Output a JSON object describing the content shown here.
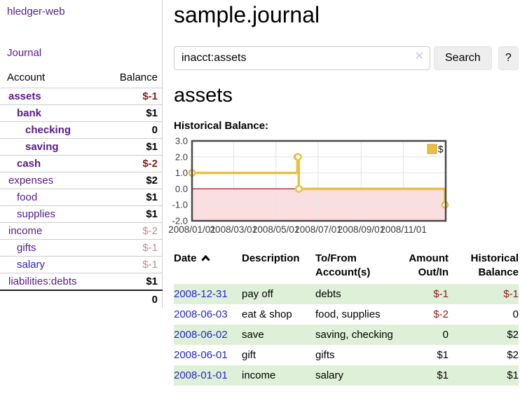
{
  "app": {
    "brand": "hledger-web",
    "nav_journal": "Journal"
  },
  "sidebar": {
    "accounts_header": {
      "account": "Account",
      "balance": "Balance"
    },
    "accounts": [
      {
        "name": "assets",
        "balance": "$-1",
        "indent": 1,
        "bold": true,
        "negative": "strong"
      },
      {
        "name": "bank",
        "balance": "$1",
        "indent": 2,
        "bold": true
      },
      {
        "name": "checking",
        "balance": "0",
        "indent": 3,
        "bold": true
      },
      {
        "name": "saving",
        "balance": "$1",
        "indent": 3,
        "bold": true
      },
      {
        "name": "cash",
        "balance": "$-2",
        "indent": 2,
        "bold": true,
        "negative": "strong"
      },
      {
        "name": "expenses",
        "balance": "$2",
        "indent": 1
      },
      {
        "name": "food",
        "balance": "$1",
        "indent": 2
      },
      {
        "name": "supplies",
        "balance": "$1",
        "indent": 2
      },
      {
        "name": "income",
        "balance": "$-2",
        "indent": 1,
        "negative": "muted"
      },
      {
        "name": "gifts",
        "balance": "$-1",
        "indent": 2,
        "negative": "muted"
      },
      {
        "name": "salary",
        "balance": "$-1",
        "indent": 2,
        "negative": "muted",
        "link_color": "blue"
      },
      {
        "name": "liabilities:debts",
        "balance": "$1",
        "indent": 1
      }
    ],
    "total": "0"
  },
  "header": {
    "title": "sample.journal"
  },
  "search": {
    "value": "inacct:assets",
    "clear_icon": "✕",
    "button_label": "Search",
    "help_label": "?"
  },
  "account_page": {
    "heading": "assets",
    "chart_title": "Historical Balance:"
  },
  "chart_data": {
    "type": "line",
    "step": true,
    "title": "Historical Balance:",
    "series": [
      {
        "name": "$",
        "color": "#e9c044",
        "x": [
          "2008/01/01",
          "2008/06/01",
          "2008/06/02",
          "2008/06/03",
          "2008/12/31"
        ],
        "values": [
          1,
          2,
          2,
          0,
          -1
        ]
      }
    ],
    "x_range": [
      "2008/01/01",
      "2009/01/01"
    ],
    "x_ticks": [
      "2008/01/01",
      "2008/03/01",
      "2008/05/01",
      "2008/07/01",
      "2008/09/01",
      "2008/11/01"
    ],
    "y_ticks": [
      "3.0",
      "2.0",
      "1.0",
      "0.0",
      "-1.0",
      "-2.0"
    ],
    "ylim": [
      -2,
      3
    ],
    "grid": true,
    "legend_position": "top-right",
    "negative_region_color": "#fbdfe0",
    "zero_line_color": "#9e1a1a",
    "frame_color": "#4a4a4a",
    "grid_color": "#e4e4e4"
  },
  "register": {
    "columns": [
      {
        "label": "Date",
        "sorted_asc": true
      },
      {
        "label": "Description"
      },
      {
        "label": "To/From Account(s)"
      },
      {
        "label": "Amount Out/In",
        "align": "right"
      },
      {
        "label": "Historical Balance",
        "align": "right"
      }
    ],
    "rows": [
      {
        "date": "2008-12-31",
        "description": "pay off",
        "accounts": "debts",
        "amount": "$-1",
        "balance": "$-1",
        "amount_neg": true,
        "balance_neg": true
      },
      {
        "date": "2008-06-03",
        "description": "eat & shop",
        "accounts": "food, supplies",
        "amount": "$-2",
        "balance": "0",
        "amount_neg": true
      },
      {
        "date": "2008-06-02",
        "description": "save",
        "accounts": "saving, checking",
        "amount": "0",
        "balance": "$2"
      },
      {
        "date": "2008-06-01",
        "description": "gift",
        "accounts": "gifts",
        "amount": "$1",
        "balance": "$2"
      },
      {
        "date": "2008-01-01",
        "description": "income",
        "accounts": "salary",
        "amount": "$1",
        "balance": "$1"
      }
    ]
  }
}
